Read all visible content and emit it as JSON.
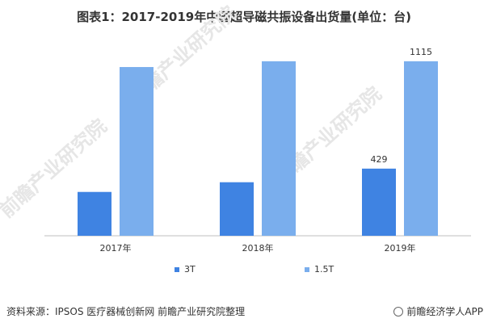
{
  "title": "图表1：2017-2019年中国超导磁共振设备出货量(单位：台)",
  "source_text": "资料来源：IPSOS 医疗器械创新网 前瞻产业研究院整理",
  "brand_text": "前瞻经济学人APP",
  "watermark_text": "前瞻产业研究院",
  "colors": {
    "series_3T": "#3f83e2",
    "series_15T": "#7aaeed",
    "axis": "#bfbfbf",
    "text": "#333333"
  },
  "chart_data": {
    "type": "bar",
    "title": "图表1：2017-2019年中国超导磁共振设备出货量(单位：台)",
    "categories": [
      "2017年",
      "2018年",
      "2019年"
    ],
    "series": [
      {
        "name": "3T",
        "values": [
          280,
          342,
          429
        ],
        "labels": [
          "",
          "",
          "429"
        ]
      },
      {
        "name": "1.5T",
        "values": [
          1078,
          1115,
          1115
        ],
        "labels": [
          "",
          "",
          "1115"
        ]
      }
    ],
    "ylim": [
      0,
      1300
    ],
    "grid": false,
    "legend_position": "bottom"
  }
}
